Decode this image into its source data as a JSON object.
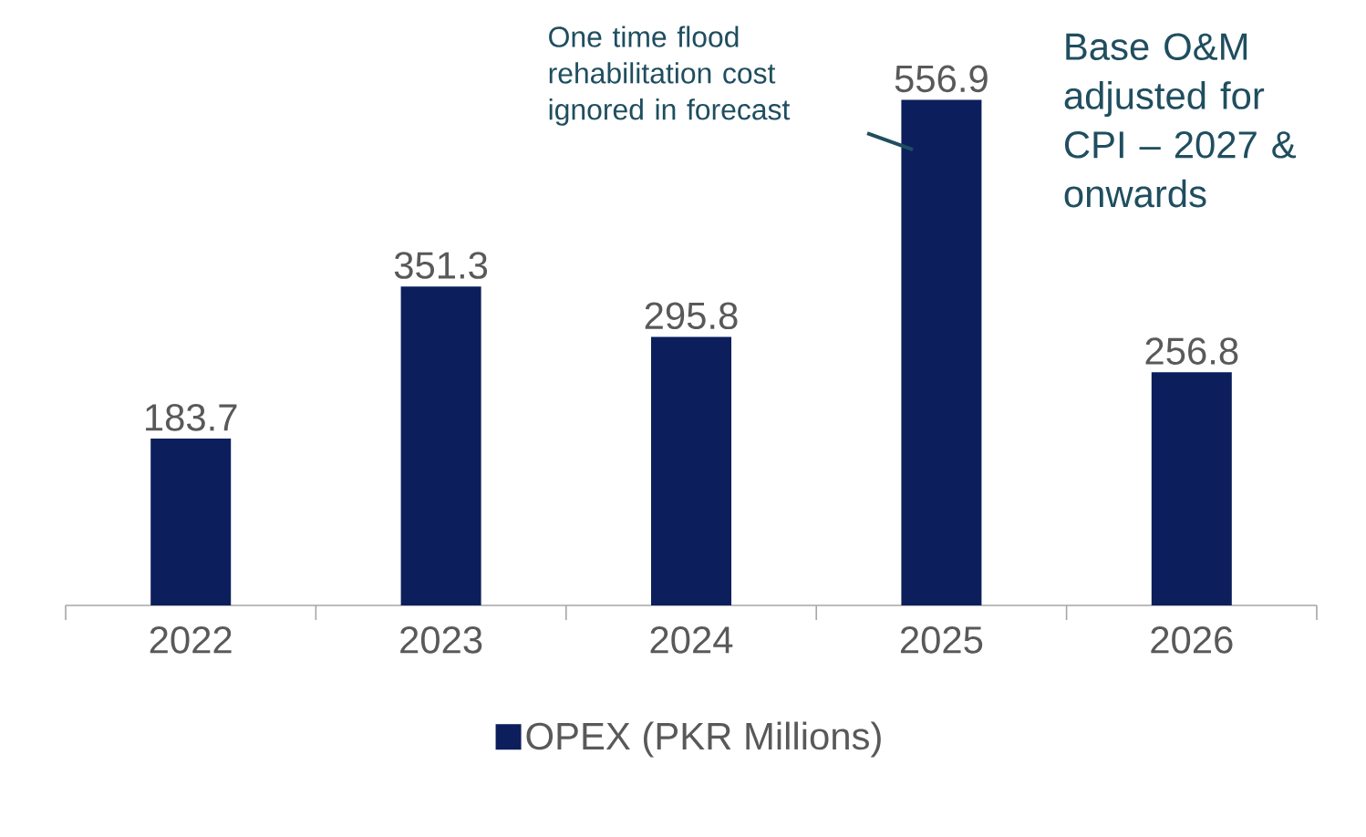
{
  "chart_data": {
    "type": "bar",
    "categories": [
      "2022",
      "2023",
      "2024",
      "2025",
      "2026"
    ],
    "series": [
      {
        "name": "OPEX (PKR Millions)",
        "color": "#0c1f5c",
        "values": [
          183.7,
          351.3,
          295.8,
          556.9,
          256.8
        ],
        "value_labels": [
          "183.7",
          "351.3",
          "295.8",
          "556.9",
          "256.8"
        ]
      }
    ],
    "tick_labels": "x",
    "grid": false,
    "legend": "bottom",
    "annotations": [
      "One time flood rehabilitation cost ignored in forecast",
      "Base O&M adjusted for CPI – 2027 & onwards"
    ]
  }
}
